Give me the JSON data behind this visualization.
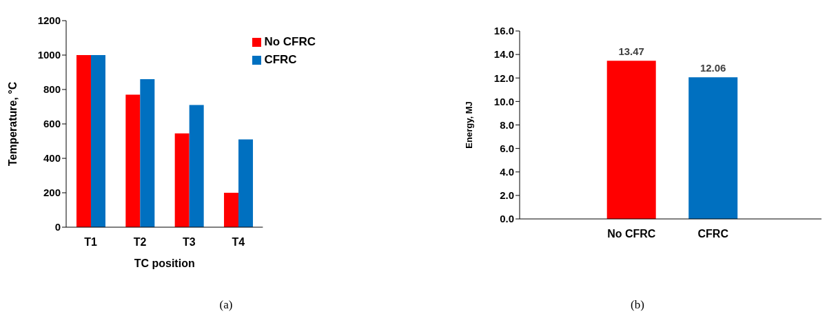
{
  "chart_data": [
    {
      "type": "bar",
      "categories": [
        "T1",
        "T2",
        "T3",
        "T4"
      ],
      "xlabel": "TC position",
      "ylabel": "Temperature, °C",
      "series": [
        {
          "name": "No CFRC",
          "color": "#ff0000",
          "values": [
            1000,
            770,
            545,
            200
          ]
        },
        {
          "name": "CFRC",
          "color": "#0070c0",
          "values": [
            1000,
            860,
            710,
            510
          ]
        }
      ],
      "ylim": [
        0,
        1200
      ],
      "yticks": [
        0,
        200,
        400,
        600,
        800,
        1000,
        1200
      ],
      "grid": false,
      "legend": "top right",
      "annotations": [
        "(a)"
      ]
    },
    {
      "type": "bar",
      "categories": [
        "No CFRC",
        "CFRC"
      ],
      "ylabel": "Energy, MJ",
      "values": [
        13.47,
        12.06
      ],
      "colors": [
        "#ff0000",
        "#0070c0"
      ],
      "ylim": [
        0,
        16
      ],
      "yticks": [
        {
          "value": 0,
          "label": "0.0"
        },
        {
          "value": 2,
          "label": "2.0"
        },
        {
          "value": 4,
          "label": "4.0"
        },
        {
          "value": 6,
          "label": "6.0"
        },
        {
          "value": 8,
          "label": "8.0"
        },
        {
          "value": 10,
          "label": "10.0"
        },
        {
          "value": 12,
          "label": "12.0"
        },
        {
          "value": 14,
          "label": "14.0"
        },
        {
          "value": 16,
          "label": "16.0"
        }
      ],
      "grid": false,
      "data_labels": true,
      "annotations": [
        "(b)"
      ]
    }
  ]
}
